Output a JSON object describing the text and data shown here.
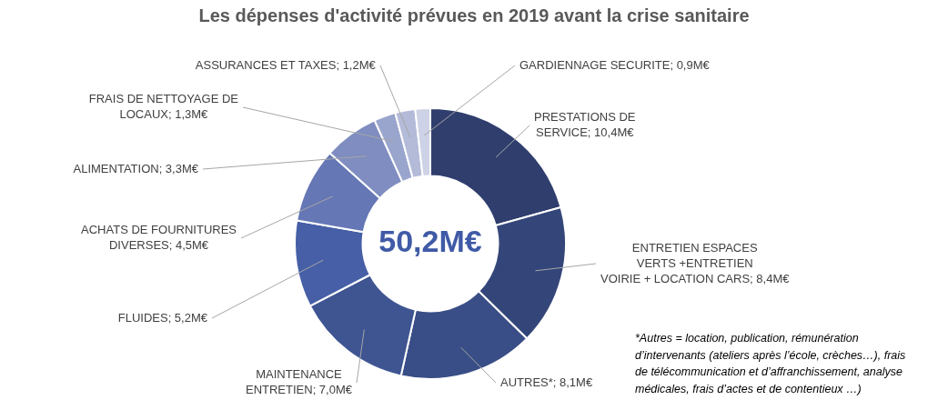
{
  "chart_data": {
    "type": "donut",
    "title": "Les dépenses d'activité prévues en 2019 avant la crise sanitaire",
    "categories": [
      "PRESTATIONS DE SERVICE",
      "ENTRETIEN ESPACES VERTS +ENTRETIEN VOIRIE + LOCATION CARS",
      "AUTRES*",
      "MAINTENANCE ENTRETIEN",
      "FLUIDES",
      "ACHATS DE FOURNITURES DIVERSES",
      "ALIMENTATION",
      "FRAIS DE NETTOYAGE DE LOCAUX",
      "ASSURANCES ET TAXES",
      "GARDIENNAGE SECURITE"
    ],
    "values": [
      10.4,
      8.4,
      8.1,
      7.0,
      5.2,
      4.5,
      3.3,
      1.3,
      1.2,
      0.9
    ],
    "value_labels": [
      "10,4M€",
      "8,4M€",
      "8,1M€",
      "7,0M€",
      "5,2M€",
      "4,5M€",
      "3,3M€",
      "1,3M€",
      "1,2M€",
      "0,9M€"
    ],
    "colors": [
      "#2f3e6d",
      "#344679",
      "#394e86",
      "#3e5592",
      "#465fa6",
      "#6577b5",
      "#7f8dc0",
      "#9aa5cd",
      "#b4bbd9",
      "#cdd2e6"
    ],
    "annotations": [
      "50,2M€",
      "*Autres = location, publication, rémunération d’intervenants (ateliers après l’école, crèches…), frais de télécommunication et d’affranchissement, analyse médicales, frais d’actes et de contentieux …)"
    ],
    "legend": false
  }
}
